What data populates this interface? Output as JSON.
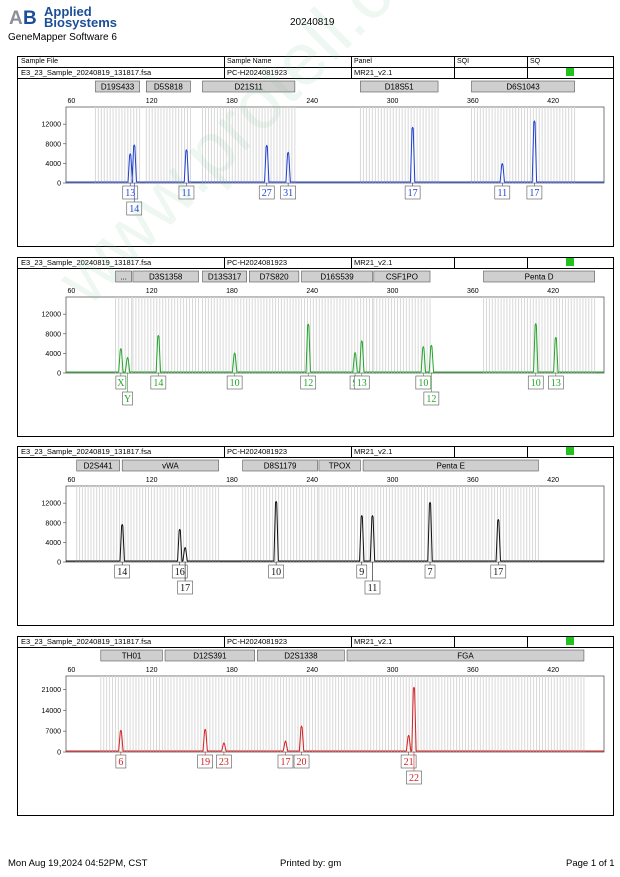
{
  "brand": {
    "line1": "Applied",
    "line2": "Biosystems",
    "logo": "AB"
  },
  "software": "GeneMapper Software 6",
  "report_date": "20240819",
  "header": {
    "sample_file": "Sample File",
    "sample_name": "Sample Name",
    "panel": "Panel",
    "sqi": "SQI",
    "sq": "SQ"
  },
  "footer": {
    "date": "Mon Aug 19,2024 04:52PM, CST",
    "printed_by": "Printed by: gm",
    "page": "Page 1 of 1"
  },
  "watermark": "www.protell.com.cn",
  "x_ticks": [
    60,
    120,
    180,
    240,
    300,
    360,
    420
  ],
  "x_range": [
    56,
    458
  ],
  "colors": {
    "blue": "#1f3fd0",
    "green": "#22a52a",
    "black": "#111111",
    "red": "#d42020",
    "quality": "#22c21e"
  },
  "chart_data": [
    {
      "type": "line",
      "dye": "blue",
      "file": "E3_23_Sample_20240819_131817.fsa",
      "sample": "PC-H2024081923",
      "panel": "MR21_v2.1",
      "y_ticks": [
        0,
        4000,
        8000,
        12000
      ],
      "ylim": [
        0,
        15500
      ],
      "markers": [
        {
          "name": "D19S433",
          "start": 78,
          "end": 111
        },
        {
          "name": "D5S818",
          "start": 116,
          "end": 149
        },
        {
          "name": "D21S11",
          "start": 158,
          "end": 227
        },
        {
          "name": "D18S51",
          "start": 276,
          "end": 334
        },
        {
          "name": "D6S1043",
          "start": 359,
          "end": 436
        }
      ],
      "peaks": [
        {
          "x": 104,
          "h": 5900
        },
        {
          "x": 107,
          "h": 7700
        },
        {
          "x": 146,
          "h": 6700
        },
        {
          "x": 206,
          "h": 7600
        },
        {
          "x": 222,
          "h": 6200
        },
        {
          "x": 315,
          "h": 11300
        },
        {
          "x": 382,
          "h": 3900
        },
        {
          "x": 406,
          "h": 12600
        }
      ],
      "calls": [
        {
          "x": 104,
          "label": "13",
          "row": 0
        },
        {
          "x": 107,
          "label": "14",
          "row": 1
        },
        {
          "x": 146,
          "label": "11",
          "row": 0
        },
        {
          "x": 206,
          "label": "27",
          "row": 0
        },
        {
          "x": 222,
          "label": "31",
          "row": 0
        },
        {
          "x": 315,
          "label": "17",
          "row": 0
        },
        {
          "x": 382,
          "label": "11",
          "row": 0
        },
        {
          "x": 406,
          "label": "17",
          "row": 0
        }
      ]
    },
    {
      "type": "line",
      "dye": "green",
      "file": "E3_23_Sample_20240819_131817.fsa",
      "sample": "PC-H2024081923",
      "panel": "MR21_v2.1",
      "y_ticks": [
        0,
        4000,
        8000,
        12000
      ],
      "ylim": [
        0,
        15500
      ],
      "markers": [
        {
          "name": "...",
          "start": 93,
          "end": 105
        },
        {
          "name": "D3S1358",
          "start": 106,
          "end": 155
        },
        {
          "name": "D13S317",
          "start": 158,
          "end": 191
        },
        {
          "name": "D7S820",
          "start": 193,
          "end": 230
        },
        {
          "name": "D16S539",
          "start": 232,
          "end": 285
        },
        {
          "name": "CSF1PO",
          "start": 286,
          "end": 328
        },
        {
          "name": "Penta D",
          "start": 368,
          "end": 451
        }
      ],
      "peaks": [
        {
          "x": 97,
          "h": 4900
        },
        {
          "x": 102,
          "h": 3100
        },
        {
          "x": 125,
          "h": 7600
        },
        {
          "x": 182,
          "h": 4000
        },
        {
          "x": 237,
          "h": 9900
        },
        {
          "x": 272,
          "h": 4100
        },
        {
          "x": 277,
          "h": 6500
        },
        {
          "x": 323,
          "h": 5300
        },
        {
          "x": 329,
          "h": 5600
        },
        {
          "x": 407,
          "h": 10000
        },
        {
          "x": 422,
          "h": 7200
        }
      ],
      "calls": [
        {
          "x": 97,
          "label": "X",
          "row": 0
        },
        {
          "x": 102,
          "label": "Y",
          "row": 1
        },
        {
          "x": 125,
          "label": "14",
          "row": 0
        },
        {
          "x": 182,
          "label": "10",
          "row": 0
        },
        {
          "x": 237,
          "label": "12",
          "row": 0
        },
        {
          "x": 272,
          "label": "9",
          "row": 0
        },
        {
          "x": 277,
          "label": "13",
          "row": 0
        },
        {
          "x": 323,
          "label": "10",
          "row": 0
        },
        {
          "x": 329,
          "label": "12",
          "row": 1
        },
        {
          "x": 407,
          "label": "10",
          "row": 0
        },
        {
          "x": 422,
          "label": "13",
          "row": 0
        }
      ]
    },
    {
      "type": "line",
      "dye": "black",
      "file": "E3_23_Sample_20240819_131817.fsa",
      "sample": "PC-H2024081923",
      "panel": "MR21_v2.1",
      "y_ticks": [
        0,
        4000,
        8000,
        12000
      ],
      "ylim": [
        0,
        15500
      ],
      "markers": [
        {
          "name": "D2S441",
          "start": 64,
          "end": 96
        },
        {
          "name": "vWA",
          "start": 98,
          "end": 170
        },
        {
          "name": "D8S1179",
          "start": 188,
          "end": 244
        },
        {
          "name": "TPOX",
          "start": 245,
          "end": 276
        },
        {
          "name": "Penta E",
          "start": 278,
          "end": 409
        }
      ],
      "peaks": [
        {
          "x": 98,
          "h": 7600
        },
        {
          "x": 141,
          "h": 6600
        },
        {
          "x": 145,
          "h": 2900
        },
        {
          "x": 213,
          "h": 12300
        },
        {
          "x": 277,
          "h": 9400
        },
        {
          "x": 285,
          "h": 9400
        },
        {
          "x": 328,
          "h": 12100
        },
        {
          "x": 379,
          "h": 8600
        }
      ],
      "calls": [
        {
          "x": 98,
          "label": "14",
          "row": 0
        },
        {
          "x": 141,
          "label": "16",
          "row": 0
        },
        {
          "x": 145,
          "label": "17",
          "row": 1
        },
        {
          "x": 213,
          "label": "10",
          "row": 0
        },
        {
          "x": 277,
          "label": "9",
          "row": 0
        },
        {
          "x": 285,
          "label": "11",
          "row": 1
        },
        {
          "x": 328,
          "label": "7",
          "row": 0
        },
        {
          "x": 379,
          "label": "17",
          "row": 0
        }
      ]
    },
    {
      "type": "line",
      "dye": "red",
      "file": "E3_23_Sample_20240819_131817.fsa",
      "sample": "PC-H2024081923",
      "panel": "MR21_v2.1",
      "y_ticks": [
        0,
        7000,
        14000,
        21000
      ],
      "ylim": [
        0,
        25500
      ],
      "markers": [
        {
          "name": "TH01",
          "start": 82,
          "end": 128
        },
        {
          "name": "D12S391",
          "start": 130,
          "end": 197
        },
        {
          "name": "D2S1338",
          "start": 199,
          "end": 264
        },
        {
          "name": "FGA",
          "start": 266,
          "end": 443
        }
      ],
      "peaks": [
        {
          "x": 97,
          "h": 7200
        },
        {
          "x": 160,
          "h": 7500
        },
        {
          "x": 174,
          "h": 3000
        },
        {
          "x": 220,
          "h": 3600
        },
        {
          "x": 232,
          "h": 8600
        },
        {
          "x": 312,
          "h": 5500
        },
        {
          "x": 316,
          "h": 21600
        }
      ],
      "calls": [
        {
          "x": 97,
          "label": "6",
          "row": 0
        },
        {
          "x": 160,
          "label": "19",
          "row": 0
        },
        {
          "x": 174,
          "label": "23",
          "row": 0
        },
        {
          "x": 220,
          "label": "17",
          "row": 0
        },
        {
          "x": 232,
          "label": "20",
          "row": 0
        },
        {
          "x": 312,
          "label": "21",
          "row": 0
        },
        {
          "x": 316,
          "label": "22",
          "row": 1
        }
      ]
    }
  ]
}
